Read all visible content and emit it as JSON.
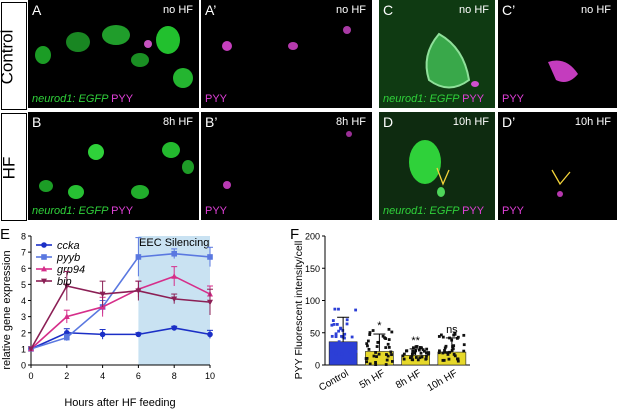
{
  "rows": {
    "control": "Control",
    "hf": "HF"
  },
  "panels": [
    {
      "id": "A",
      "label": "A",
      "cond": "no HF",
      "channel": "merge"
    },
    {
      "id": "A2",
      "label": "A’",
      "cond": "no HF",
      "channel": "pyy"
    },
    {
      "id": "C",
      "label": "C",
      "cond": "no HF",
      "channel": "merge"
    },
    {
      "id": "C2",
      "label": "C’",
      "cond": "no HF",
      "channel": "pyy"
    },
    {
      "id": "B",
      "label": "B",
      "cond": "8h HF",
      "channel": "merge"
    },
    {
      "id": "B2",
      "label": "B’",
      "cond": "8h HF",
      "channel": "pyy"
    },
    {
      "id": "D",
      "label": "D",
      "cond": "10h HF",
      "channel": "merge"
    },
    {
      "id": "D2",
      "label": "D’",
      "cond": "10h HF",
      "channel": "pyy"
    }
  ],
  "captions": {
    "gene": "neurod1: EGFP",
    "pyy": "PYY"
  },
  "colors": {
    "green": "#2fd13a",
    "magenta": "#e040d8",
    "ccka": "#1b2fc6",
    "pyyb": "#5a78e0",
    "grp94": "#d62e8a",
    "bip": "#8b1f55",
    "silencing": "#c9e2f2",
    "bars": "#2c3fd6",
    "bars_hf": "#e6d82a"
  },
  "chart_data": [
    {
      "panel": "E",
      "type": "line",
      "xlabel": "Hours after HF feeding",
      "ylabel": "relative gene expression",
      "x_ticks": [
        "0",
        "2",
        "4",
        "6",
        "8",
        "10"
      ],
      "y_ticks": [
        "0",
        "1",
        "2",
        "3",
        "4",
        "5",
        "6",
        "7",
        "8"
      ],
      "xlim": [
        0,
        10
      ],
      "ylim": [
        0,
        8
      ],
      "shaded_region": {
        "x": [
          6,
          10
        ],
        "label": "EEC Silencing"
      },
      "series": [
        {
          "name": "ccka",
          "marker": "circle",
          "x": [
            0,
            2,
            4,
            6,
            8,
            10
          ],
          "y": [
            1,
            2.0,
            1.9,
            1.9,
            2.3,
            1.9
          ],
          "err": [
            0,
            0.25,
            0.3,
            0.1,
            0.1,
            0.25
          ]
        },
        {
          "name": "pyyb",
          "marker": "square",
          "x": [
            0,
            2,
            4,
            6,
            8,
            10
          ],
          "y": [
            1,
            1.7,
            3.6,
            6.7,
            6.9,
            6.7
          ],
          "err": [
            0,
            0.2,
            0.4,
            1.2,
            0.3,
            0.6
          ]
        },
        {
          "name": "grp94",
          "marker": "triangle",
          "x": [
            0,
            2,
            4,
            6,
            8,
            10
          ],
          "y": [
            1,
            3.0,
            3.6,
            4.7,
            5.5,
            4.4
          ],
          "err": [
            0,
            0.4,
            0.6,
            0.5,
            0.6,
            0.5
          ]
        },
        {
          "name": "bip",
          "marker": "triangle-down",
          "x": [
            0,
            2,
            4,
            6,
            8,
            10
          ],
          "y": [
            1,
            4.9,
            4.4,
            4.6,
            4.1,
            3.9
          ],
          "err": [
            0,
            0.9,
            0.8,
            0.6,
            0.3,
            0.8
          ]
        }
      ]
    },
    {
      "panel": "F",
      "type": "bar",
      "ylabel": "PYY Fluorescent intensity/cell",
      "y_ticks": [
        "0",
        "50",
        "100",
        "150",
        "200"
      ],
      "ylim": [
        0,
        200
      ],
      "categories": [
        "Control",
        "5h HF",
        "8h HF",
        "10h HF"
      ],
      "values": [
        36,
        21,
        15,
        20
      ],
      "sd": [
        38,
        27,
        10,
        22
      ],
      "significance": [
        "",
        "*",
        "**",
        "ns"
      ]
    }
  ]
}
